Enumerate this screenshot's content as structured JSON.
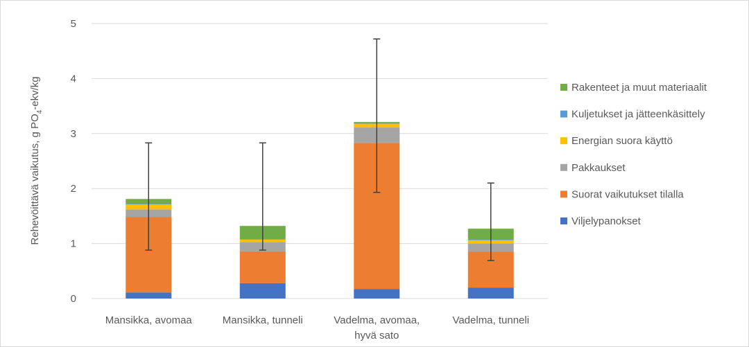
{
  "chart_data": {
    "type": "bar",
    "stacked": true,
    "categories": [
      [
        "Mansikka, avomaa"
      ],
      [
        "Mansikka, tunneli"
      ],
      [
        "Vadelma, avomaa,",
        "hyvä sato"
      ],
      [
        "Vadelma, tunneli"
      ]
    ],
    "ylabel": {
      "main": "Rehevöittävä vaikutus, g PO",
      "sub": "4",
      "tail": "-ekv/kg"
    },
    "ylim": [
      0,
      5
    ],
    "yticks": [
      "0",
      "1",
      "2",
      "3",
      "4",
      "5"
    ],
    "grid": true,
    "legend_position": "right",
    "series": [
      {
        "name": "Viljelypanokset",
        "color": "#4472C4",
        "values": [
          0.11,
          0.28,
          0.17,
          0.2
        ]
      },
      {
        "name": "Suorat vaikutukset tilalla",
        "color": "#ED7D31",
        "values": [
          1.37,
          0.58,
          2.66,
          0.65
        ]
      },
      {
        "name": "Pakkaukset",
        "color": "#A5A5A5",
        "values": [
          0.14,
          0.16,
          0.28,
          0.15
        ]
      },
      {
        "name": "Energian suora käyttö",
        "color": "#FFC000",
        "values": [
          0.09,
          0.05,
          0.07,
          0.06
        ]
      },
      {
        "name": "Kuljetukset ja jätteenkäsittely",
        "color": "#5B9BD5",
        "values": [
          0.01,
          0.01,
          0.02,
          0.01
        ]
      },
      {
        "name": "Rakenteet ja muut materiaalit",
        "color": "#70AD47",
        "values": [
          0.09,
          0.24,
          0.01,
          0.2
        ]
      }
    ],
    "error_bars": [
      {
        "low": 0.88,
        "high": 2.83
      },
      {
        "low": 0.88,
        "high": 2.83
      },
      {
        "low": 1.93,
        "high": 4.72
      },
      {
        "low": 0.69,
        "high": 2.1
      }
    ]
  }
}
